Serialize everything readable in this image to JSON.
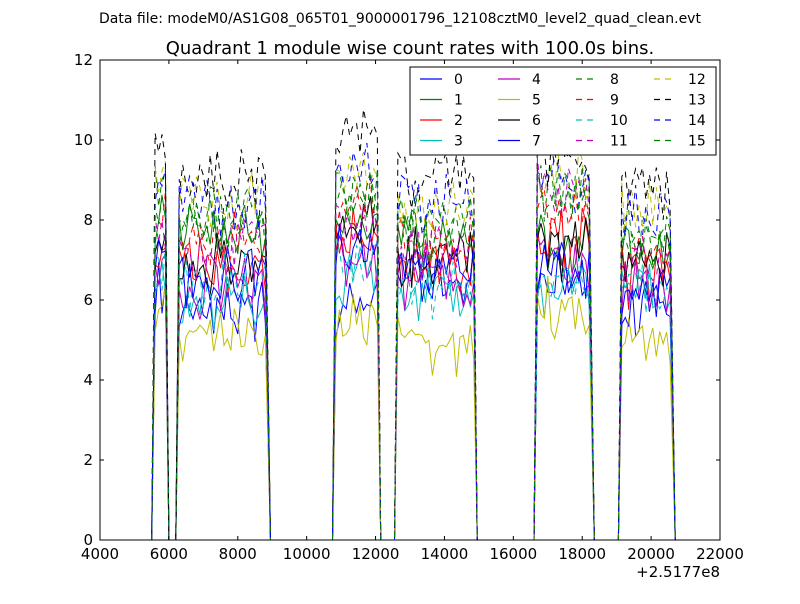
{
  "figure": {
    "suptitle": "Data file: modeM0/AS1G08_065T01_9000001796_12108cztM0_level2_quad_clean.evt",
    "offset_label": "+2.5177e8"
  },
  "chart_data": {
    "type": "line",
    "title": "Quadrant 1 module wise count rates with 100.0s bins.",
    "xlabel": "",
    "ylabel": "",
    "xlim": [
      4000,
      22000
    ],
    "ylim": [
      0,
      12
    ],
    "x_offset": 251770000,
    "xticks": [
      4000,
      6000,
      8000,
      10000,
      12000,
      14000,
      16000,
      18000,
      20000,
      22000
    ],
    "yticks": [
      0,
      2,
      4,
      6,
      8,
      10,
      12
    ],
    "grid": false,
    "legend_position": "top-right",
    "legend_columns": 4,
    "segments": [
      {
        "start": 5600,
        "end": 5950
      },
      {
        "start": 6300,
        "end": 8850
      },
      {
        "start": 10850,
        "end": 12050
      },
      {
        "start": 12650,
        "end": 14850
      },
      {
        "start": 16700,
        "end": 18250
      },
      {
        "start": 19150,
        "end": 20600
      }
    ],
    "off_values": [
      {
        "x": 6000,
        "y": 0
      },
      {
        "x": 6200,
        "y": 0
      },
      {
        "x": 9000,
        "y": 0
      },
      {
        "x": 10700,
        "y": 0
      },
      {
        "x": 12350,
        "y": 0
      },
      {
        "x": 12500,
        "y": 0
      },
      {
        "x": 15000,
        "y": 0
      },
      {
        "x": 16500,
        "y": 0
      },
      {
        "x": 18400,
        "y": 0
      },
      {
        "x": 18950,
        "y": 0
      }
    ],
    "series": [
      {
        "name": "0",
        "color": "#0000ff",
        "dash": false,
        "levels": [
          6.4,
          5.7,
          5.8,
          6.7,
          6.5,
          5.7
        ]
      },
      {
        "name": "1",
        "color": "#008000",
        "dash": false,
        "levels": [
          7.8,
          7.6,
          8.2,
          7.6,
          7.5,
          7.1
        ]
      },
      {
        "name": "2",
        "color": "#ff0000",
        "dash": false,
        "levels": [
          7.3,
          6.8,
          7.5,
          7.0,
          7.6,
          6.6
        ]
      },
      {
        "name": "3",
        "color": "#00bfbf",
        "dash": false,
        "levels": [
          6.2,
          6.0,
          6.6,
          6.1,
          6.2,
          6.1
        ]
      },
      {
        "name": "4",
        "color": "#bf00bf",
        "dash": false,
        "levels": [
          6.8,
          6.3,
          7.0,
          6.5,
          7.0,
          6.3
        ]
      },
      {
        "name": "5",
        "color": "#bfbf00",
        "dash": false,
        "levels": [
          5.8,
          5.0,
          5.5,
          4.8,
          5.8,
          5.0
        ]
      },
      {
        "name": "6",
        "color": "#000000",
        "dash": false,
        "levels": [
          7.6,
          7.0,
          7.8,
          7.1,
          7.3,
          6.9
        ]
      },
      {
        "name": "7",
        "color": "#0000ff",
        "dash": false,
        "levels": [
          7.0,
          6.5,
          7.3,
          6.6,
          6.8,
          6.4
        ]
      },
      {
        "name": "8",
        "color": "#008000",
        "dash": true,
        "levels": [
          8.6,
          8.0,
          8.6,
          8.0,
          8.8,
          7.7
        ]
      },
      {
        "name": "9",
        "color": "#ff0000",
        "dash": true,
        "levels": [
          8.1,
          7.5,
          8.3,
          7.5,
          8.3,
          7.3
        ]
      },
      {
        "name": "10",
        "color": "#00bfbf",
        "dash": true,
        "levels": [
          6.9,
          6.4,
          6.9,
          6.4,
          6.6,
          6.5
        ]
      },
      {
        "name": "11",
        "color": "#bf00bf",
        "dash": true,
        "levels": [
          7.6,
          7.2,
          7.8,
          7.3,
          8.8,
          7.0
        ]
      },
      {
        "name": "12",
        "color": "#bfbf00",
        "dash": true,
        "levels": [
          9.3,
          8.5,
          9.1,
          8.4,
          9.1,
          8.2
        ]
      },
      {
        "name": "13",
        "color": "#000000",
        "dash": true,
        "levels": [
          9.8,
          9.0,
          10.2,
          9.1,
          9.6,
          8.8
        ]
      },
      {
        "name": "14",
        "color": "#0000ff",
        "dash": true,
        "levels": [
          9.0,
          8.4,
          9.3,
          8.4,
          8.9,
          8.1
        ]
      },
      {
        "name": "15",
        "color": "#008000",
        "dash": true,
        "levels": [
          8.3,
          7.8,
          8.6,
          7.8,
          8.5,
          7.5
        ]
      }
    ]
  }
}
